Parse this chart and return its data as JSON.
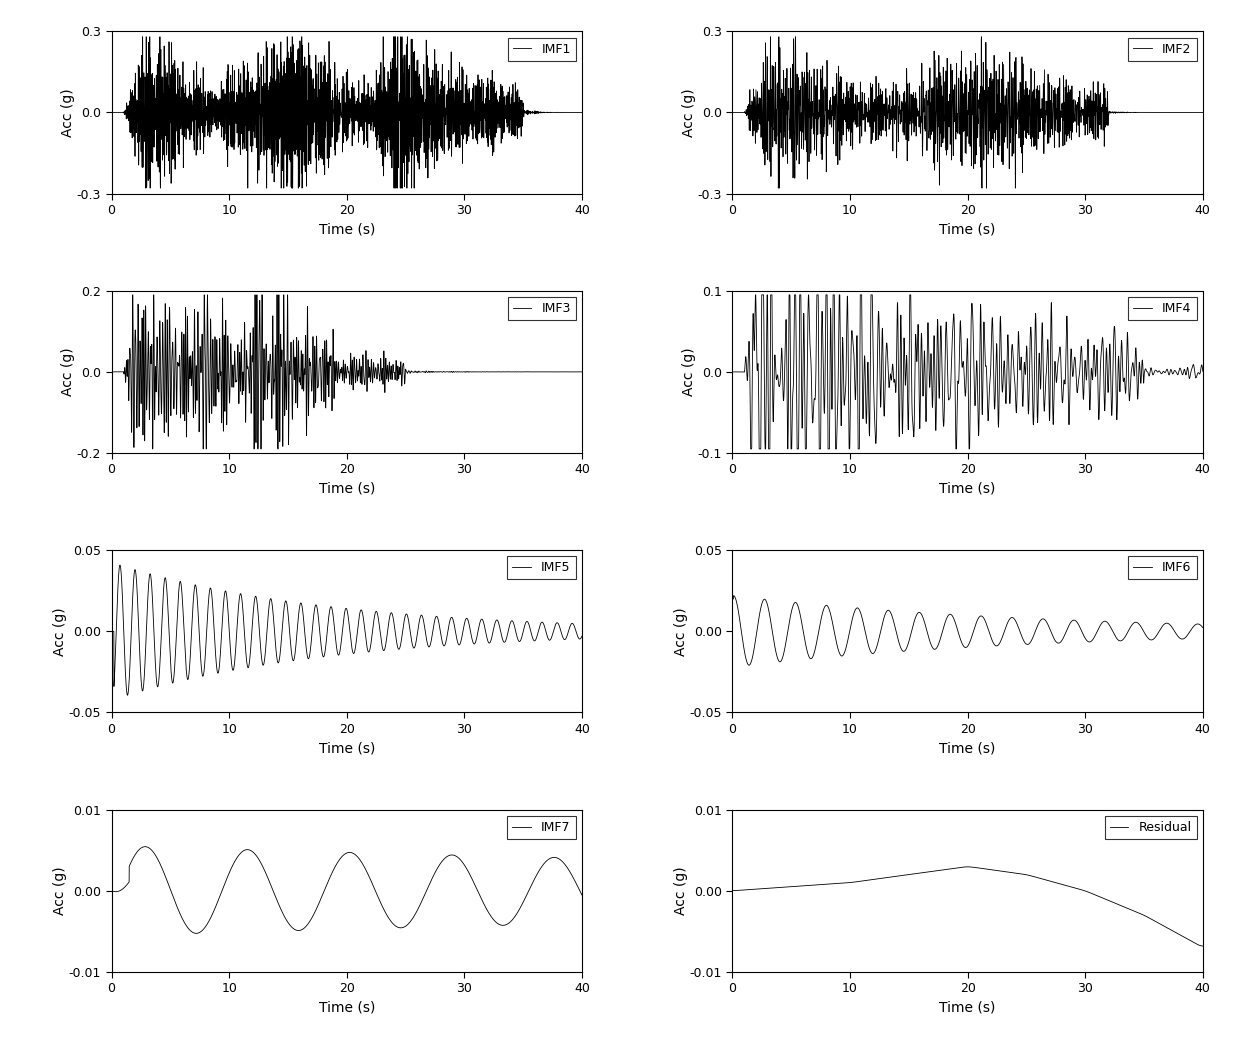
{
  "subplots": [
    {
      "label": "IMF1",
      "ylim": [
        -0.3,
        0.3
      ],
      "yticks": [
        -0.3,
        0.0,
        0.3
      ],
      "yticklabels": [
        "-0.3",
        "0.0",
        "0.3"
      ]
    },
    {
      "label": "IMF2",
      "ylim": [
        -0.3,
        0.3
      ],
      "yticks": [
        -0.3,
        0.0,
        0.3
      ],
      "yticklabels": [
        "-0.3",
        "0.0",
        "0.3"
      ]
    },
    {
      "label": "IMF3",
      "ylim": [
        -0.2,
        0.2
      ],
      "yticks": [
        -0.2,
        0.0,
        0.2
      ],
      "yticklabels": [
        "-0.2",
        "0.0",
        "0.2"
      ]
    },
    {
      "label": "IMF4",
      "ylim": [
        -0.1,
        0.1
      ],
      "yticks": [
        -0.1,
        0.0,
        0.1
      ],
      "yticklabels": [
        "-0.1",
        "0.0",
        "0.1"
      ]
    },
    {
      "label": "IMF5",
      "ylim": [
        -0.05,
        0.05
      ],
      "yticks": [
        -0.05,
        0.0,
        0.05
      ],
      "yticklabels": [
        "-0.05",
        "0.00",
        "0.05"
      ]
    },
    {
      "label": "IMF6",
      "ylim": [
        -0.05,
        0.05
      ],
      "yticks": [
        -0.05,
        0.0,
        0.05
      ],
      "yticklabels": [
        "-0.05",
        "0.00",
        "0.05"
      ]
    },
    {
      "label": "IMF7",
      "ylim": [
        -0.01,
        0.01
      ],
      "yticks": [
        -0.01,
        0.0,
        0.01
      ],
      "yticklabels": [
        "-0.01",
        "0.00",
        "0.01"
      ]
    },
    {
      "label": "Residual",
      "ylim": [
        -0.01,
        0.01
      ],
      "yticks": [
        -0.01,
        0.0,
        0.01
      ],
      "yticklabels": [
        "-0.01",
        "0.00",
        "0.01"
      ]
    }
  ],
  "xlim": [
    0,
    40
  ],
  "xticks": [
    0,
    10,
    20,
    30,
    40
  ],
  "xlabel": "Time (s)",
  "ylabel": "Acc (g)",
  "line_color": "#000000",
  "background_color": "#ffffff",
  "figsize": [
    12.4,
    10.45
  ],
  "dpi": 100
}
